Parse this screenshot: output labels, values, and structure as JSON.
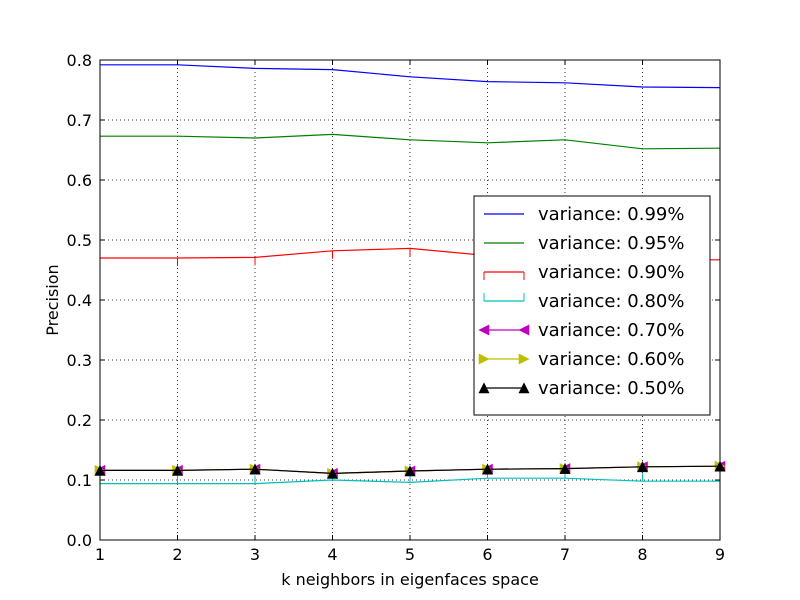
{
  "chart_data": {
    "type": "line",
    "title": "",
    "xlabel": "k neighbors in eigenfaces space",
    "ylabel": "Precision",
    "xlim": [
      1,
      9
    ],
    "ylim": [
      0.0,
      0.8
    ],
    "x": [
      1,
      2,
      3,
      4,
      5,
      6,
      7,
      8,
      9
    ],
    "xticks": [
      "1",
      "2",
      "3",
      "4",
      "5",
      "6",
      "7",
      "8",
      "9"
    ],
    "yticks": [
      "0.0",
      "0.1",
      "0.2",
      "0.3",
      "0.4",
      "0.5",
      "0.6",
      "0.7",
      "0.8"
    ],
    "grid": true,
    "legend_position": "center-right",
    "series": [
      {
        "name": "variance: 0.99%",
        "color": "#0000ff",
        "marker": "none",
        "values": [
          0.792,
          0.792,
          0.786,
          0.784,
          0.772,
          0.764,
          0.762,
          0.755,
          0.754
        ]
      },
      {
        "name": "variance: 0.95%",
        "color": "#008000",
        "marker": "none",
        "values": [
          0.673,
          0.673,
          0.67,
          0.676,
          0.667,
          0.662,
          0.667,
          0.652,
          0.653
        ]
      },
      {
        "name": "variance: 0.90%",
        "color": "#ff0000",
        "marker": "tickdown",
        "values": [
          0.47,
          0.47,
          0.471,
          0.482,
          0.486,
          0.474,
          0.47,
          0.467,
          0.467
        ]
      },
      {
        "name": "variance: 0.80%",
        "color": "#00bfbf",
        "marker": "tickup",
        "values": [
          0.094,
          0.094,
          0.094,
          0.1,
          0.096,
          0.103,
          0.103,
          0.098,
          0.098
        ]
      },
      {
        "name": "variance: 0.70%",
        "color": "#bf00bf",
        "marker": "triangle-left",
        "values": [
          0.116,
          0.116,
          0.118,
          0.111,
          0.115,
          0.118,
          0.119,
          0.122,
          0.123
        ]
      },
      {
        "name": "variance: 0.60%",
        "color": "#bfbf00",
        "marker": "triangle-right",
        "values": [
          0.116,
          0.116,
          0.118,
          0.111,
          0.115,
          0.118,
          0.119,
          0.122,
          0.123
        ]
      },
      {
        "name": "variance: 0.50%",
        "color": "#000000",
        "marker": "triangle-up",
        "values": [
          0.116,
          0.116,
          0.118,
          0.111,
          0.115,
          0.118,
          0.119,
          0.122,
          0.123
        ]
      }
    ]
  }
}
